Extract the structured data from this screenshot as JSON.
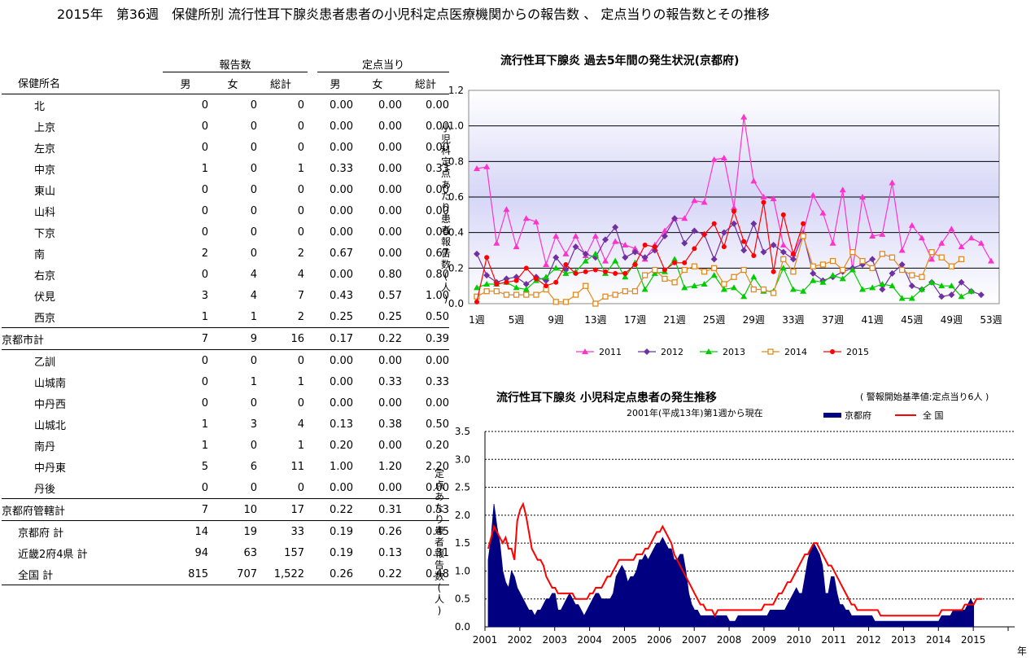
{
  "page_title": "2015年　第36週　保健所別 流行性耳下腺炎患者患者の小児科定点医療機関からの報告数 、 定点当りの報告数とその推移",
  "table": {
    "group_headers": {
      "reports": "報告数",
      "per_site": "定点当り"
    },
    "columns": {
      "name": "保健所名",
      "male": "男",
      "female": "女",
      "total": "総計",
      "male2": "男",
      "female2": "女",
      "total2": "総計"
    },
    "rows": [
      {
        "kind": "sub",
        "cells": [
          "北",
          "0",
          "0",
          "0",
          "0.00",
          "0.00",
          "0.00"
        ]
      },
      {
        "kind": "sub",
        "cells": [
          "上京",
          "0",
          "0",
          "0",
          "0.00",
          "0.00",
          "0.00"
        ]
      },
      {
        "kind": "sub",
        "cells": [
          "左京",
          "0",
          "0",
          "0",
          "0.00",
          "0.00",
          "0.00"
        ]
      },
      {
        "kind": "sub",
        "cells": [
          "中京",
          "1",
          "0",
          "1",
          "0.33",
          "0.00",
          "0.33"
        ]
      },
      {
        "kind": "sub",
        "cells": [
          "東山",
          "0",
          "0",
          "0",
          "0.00",
          "0.00",
          "0.00"
        ]
      },
      {
        "kind": "sub",
        "cells": [
          "山科",
          "0",
          "0",
          "0",
          "0.00",
          "0.00",
          "0.00"
        ]
      },
      {
        "kind": "sub",
        "cells": [
          "下京",
          "0",
          "0",
          "0",
          "0.00",
          "0.00",
          "0.00"
        ]
      },
      {
        "kind": "sub",
        "cells": [
          "南",
          "2",
          "0",
          "2",
          "0.67",
          "0.00",
          "0.67"
        ]
      },
      {
        "kind": "sub",
        "cells": [
          "右京",
          "0",
          "4",
          "4",
          "0.00",
          "0.80",
          "0.80"
        ]
      },
      {
        "kind": "sub",
        "cells": [
          "伏見",
          "3",
          "4",
          "7",
          "0.43",
          "0.57",
          "1.00"
        ]
      },
      {
        "kind": "sub",
        "cells": [
          "西京",
          "1",
          "1",
          "2",
          "0.25",
          "0.25",
          "0.50"
        ]
      },
      {
        "kind": "total",
        "cells": [
          "京都市計",
          "7",
          "9",
          "16",
          "0.17",
          "0.22",
          "0.39"
        ]
      },
      {
        "kind": "sub",
        "cells": [
          "乙訓",
          "0",
          "0",
          "0",
          "0.00",
          "0.00",
          "0.00"
        ]
      },
      {
        "kind": "sub",
        "cells": [
          "山城南",
          "0",
          "1",
          "1",
          "0.00",
          "0.33",
          "0.33"
        ]
      },
      {
        "kind": "sub",
        "cells": [
          "中丹西",
          "0",
          "0",
          "0",
          "0.00",
          "0.00",
          "0.00"
        ]
      },
      {
        "kind": "sub",
        "cells": [
          "山城北",
          "1",
          "3",
          "4",
          "0.13",
          "0.38",
          "0.50"
        ]
      },
      {
        "kind": "sub",
        "cells": [
          "南丹",
          "1",
          "0",
          "1",
          "0.20",
          "0.00",
          "0.20"
        ]
      },
      {
        "kind": "sub",
        "cells": [
          "中丹東",
          "5",
          "6",
          "11",
          "1.00",
          "1.20",
          "2.20"
        ]
      },
      {
        "kind": "sub",
        "cells": [
          "丹後",
          "0",
          "0",
          "0",
          "0.00",
          "0.00",
          "0.00"
        ]
      },
      {
        "kind": "total",
        "cells": [
          "京都府管轄計",
          "7",
          "10",
          "17",
          "0.22",
          "0.31",
          "0.53"
        ]
      },
      {
        "kind": "sum",
        "cells": [
          "京都府 計",
          "14",
          "19",
          "33",
          "0.19",
          "0.26",
          "0.45"
        ]
      },
      {
        "kind": "sum",
        "cells": [
          "近畿2府4県 計",
          "94",
          "63",
          "157",
          "0.19",
          "0.13",
          "0.31"
        ]
      },
      {
        "kind": "sum",
        "cells": [
          "全国 計",
          "815",
          "707",
          "1,522",
          "0.26",
          "0.22",
          "0.48"
        ]
      }
    ]
  },
  "chart_data": [
    {
      "type": "line",
      "title": "流行性耳下腺炎 過去5年間の発生状況(京都府)",
      "ylabel": "小児科定点あたり患者報告数(人)",
      "ylim": [
        0,
        1.2
      ],
      "yticks": [
        "0.0",
        "0.2",
        "0.4",
        "0.6",
        "0.8",
        "1.0",
        "1.2"
      ],
      "xticks": [
        "1週",
        "5週",
        "9週",
        "13週",
        "17週",
        "21週",
        "25週",
        "29週",
        "33週",
        "37週",
        "41週",
        "45週",
        "49週",
        "53週"
      ],
      "legend_position": "bottom",
      "series": [
        {
          "name": "2011",
          "color": "#ff33cc",
          "marker": "triangle",
          "values": [
            0.76,
            0.77,
            0.34,
            0.53,
            0.32,
            0.48,
            0.46,
            0.22,
            0.38,
            0.28,
            0.38,
            0.27,
            0.38,
            0.24,
            0.35,
            0.33,
            0.31,
            0.25,
            0.33,
            0.41,
            0.48,
            0.48,
            0.58,
            0.57,
            0.81,
            0.82,
            0.54,
            1.05,
            0.69,
            0.6,
            0.59,
            0.33,
            0.28,
            0.4,
            0.61,
            0.51,
            0.34,
            0.64,
            0.19,
            0.6,
            0.38,
            0.39,
            0.68,
            0.3,
            0.44,
            0.37,
            0.25,
            0.34,
            0.42,
            0.32,
            0.37,
            0.34,
            0.24
          ]
        },
        {
          "name": "2012",
          "color": "#7030a0",
          "marker": "diamond",
          "values": [
            0.28,
            0.16,
            0.12,
            0.14,
            0.15,
            0.11,
            0.15,
            0.13,
            0.26,
            0.19,
            0.32,
            0.28,
            0.26,
            0.36,
            0.43,
            0.26,
            0.29,
            0.26,
            0.3,
            0.38,
            0.48,
            0.34,
            0.41,
            0.39,
            0.25,
            0.4,
            0.45,
            0.3,
            0.45,
            0.29,
            0.33,
            0.29,
            0.25,
            0.39,
            0.17,
            0.13,
            0.15,
            0.18,
            0.2,
            0.22,
            0.25,
            0.08,
            0.17,
            0.22,
            0.1,
            0.08,
            0.12,
            0.04,
            0.05,
            0.12,
            0.07,
            0.05
          ]
        },
        {
          "name": "2013",
          "color": "#00cc00",
          "marker": "triangle",
          "values": [
            0.09,
            0.11,
            0.11,
            0.12,
            0.09,
            0.08,
            0.13,
            0.15,
            0.2,
            0.17,
            0.18,
            0.24,
            0.28,
            0.17,
            0.24,
            0.15,
            0.23,
            0.08,
            0.17,
            0.18,
            0.25,
            0.09,
            0.1,
            0.11,
            0.16,
            0.08,
            0.09,
            0.04,
            0.15,
            0.07,
            0.07,
            0.2,
            0.08,
            0.07,
            0.13,
            0.12,
            0.16,
            0.14,
            0.19,
            0.08,
            0.09,
            0.11,
            0.1,
            0.03,
            0.03,
            0.08,
            0.12,
            0.1,
            0.1,
            0.04,
            0.07
          ]
        },
        {
          "name": "2014",
          "color": "#e28a1e",
          "marker": "square",
          "values": [
            0.04,
            0.07,
            0.07,
            0.05,
            0.05,
            0.05,
            0.05,
            0.08,
            0.01,
            0.01,
            0.05,
            0.1,
            0.0,
            0.04,
            0.05,
            0.07,
            0.07,
            0.16,
            0.19,
            0.14,
            0.12,
            0.19,
            0.21,
            0.18,
            0.2,
            0.11,
            0.15,
            0.19,
            0.08,
            0.08,
            0.06,
            0.25,
            0.18,
            0.38,
            0.21,
            0.22,
            0.24,
            0.19,
            0.29,
            0.24,
            0.2,
            0.28,
            0.26,
            0.19,
            0.16,
            0.15,
            0.29,
            0.26,
            0.21,
            0.25
          ]
        },
        {
          "name": "2015",
          "color": "#ff0000",
          "marker": "circle",
          "values": [
            0.01,
            0.26,
            0.11,
            0.12,
            0.13,
            0.2,
            0.14,
            0.1,
            0.12,
            0.22,
            0.17,
            0.18,
            0.19,
            0.18,
            0.17,
            0.17,
            0.22,
            0.33,
            0.32,
            0.19,
            0.23,
            0.23,
            0.31,
            0.39,
            0.45,
            0.32,
            0.52,
            0.35,
            0.27,
            0.57,
            0.18,
            0.5,
            0.28,
            0.45
          ]
        }
      ]
    },
    {
      "type": "area",
      "title": "流行性耳下腺炎 小児科定点患者の発生推移",
      "subtitle": "2001年(平成13年)第1週から現在",
      "note": "( 警報開始基準値:定点当り6人 )",
      "ylabel": "定点あたり患者報告数(人)",
      "xlabel": "年",
      "ylim": [
        0,
        3.5
      ],
      "yticks": [
        "0.0",
        "0.5",
        "1.0",
        "1.5",
        "2.0",
        "2.5",
        "3.0",
        "3.5"
      ],
      "xticks": [
        "2001",
        "2002",
        "2003",
        "2004",
        "2005",
        "2006",
        "2007",
        "2008",
        "2009",
        "2010",
        "2011",
        "2012",
        "2013",
        "2014",
        "2015"
      ],
      "series": [
        {
          "name": "京都府",
          "color": "#000080",
          "style": "area"
        },
        {
          "name": "全 国",
          "color": "#ff0000",
          "style": "line"
        }
      ],
      "kyoto_monthly": [
        1.2,
        1.6,
        2.2,
        1.8,
        1.5,
        1.0,
        0.8,
        0.7,
        1.0,
        0.9,
        0.7,
        0.6,
        0.5,
        0.4,
        0.3,
        0.3,
        0.2,
        0.3,
        0.3,
        0.4,
        0.5,
        0.5,
        0.6,
        0.6,
        0.3,
        0.3,
        0.4,
        0.5,
        0.6,
        0.5,
        0.4,
        0.4,
        0.3,
        0.2,
        0.3,
        0.4,
        0.5,
        0.6,
        0.6,
        0.5,
        0.5,
        0.5,
        0.5,
        0.6,
        0.9,
        1.0,
        1.1,
        1.0,
        0.8,
        0.9,
        0.9,
        1.0,
        1.2,
        1.2,
        1.3,
        1.2,
        1.3,
        1.4,
        1.5,
        1.5,
        1.6,
        1.5,
        1.4,
        1.4,
        1.2,
        1.2,
        1.3,
        1.3,
        1.0,
        0.6,
        0.4,
        0.3,
        0.3,
        0.2,
        0.2,
        0.2,
        0.2,
        0.2,
        0.2,
        0.2,
        0.2,
        0.2,
        0.2,
        0.1,
        0.1,
        0.1,
        0.2,
        0.2,
        0.2,
        0.2,
        0.2,
        0.2,
        0.2,
        0.2,
        0.2,
        0.2,
        0.2,
        0.3,
        0.3,
        0.3,
        0.3,
        0.3,
        0.3,
        0.4,
        0.5,
        0.6,
        0.7,
        0.6,
        0.6,
        0.9,
        1.2,
        1.4,
        1.5,
        1.4,
        1.3,
        1.1,
        0.6,
        0.6,
        0.9,
        0.9,
        0.6,
        0.4,
        0.4,
        0.3,
        0.3,
        0.2,
        0.2,
        0.2,
        0.2,
        0.2,
        0.2,
        0.2,
        0.2,
        0.1,
        0.1,
        0.1,
        0.1,
        0.1,
        0.1,
        0.1,
        0.1,
        0.1,
        0.1,
        0.1,
        0.1,
        0.1,
        0.1,
        0.1,
        0.1,
        0.1,
        0.1,
        0.1,
        0.1,
        0.1,
        0.1,
        0.1,
        0.2,
        0.2,
        0.2,
        0.2,
        0.3,
        0.3,
        0.3,
        0.3,
        0.3,
        0.4,
        0.5,
        0.4
      ],
      "national_monthly": [
        1.4,
        1.6,
        1.8,
        1.7,
        1.6,
        1.5,
        1.6,
        1.4,
        1.4,
        1.2,
        1.9,
        2.1,
        2.2,
        2.0,
        1.7,
        1.4,
        1.3,
        1.2,
        1.2,
        1.1,
        0.9,
        0.8,
        0.7,
        0.7,
        0.6,
        0.6,
        0.6,
        0.6,
        0.6,
        0.6,
        0.5,
        0.5,
        0.5,
        0.5,
        0.5,
        0.6,
        0.6,
        0.7,
        0.7,
        0.7,
        0.8,
        0.9,
        0.9,
        1.0,
        1.1,
        1.2,
        1.2,
        1.2,
        1.2,
        1.2,
        1.2,
        1.3,
        1.3,
        1.3,
        1.4,
        1.4,
        1.5,
        1.6,
        1.7,
        1.7,
        1.8,
        1.7,
        1.6,
        1.5,
        1.3,
        1.2,
        1.1,
        1.0,
        0.9,
        0.8,
        0.7,
        0.6,
        0.5,
        0.4,
        0.4,
        0.3,
        0.3,
        0.3,
        0.2,
        0.3,
        0.3,
        0.3,
        0.3,
        0.3,
        0.3,
        0.3,
        0.3,
        0.3,
        0.3,
        0.3,
        0.3,
        0.3,
        0.3,
        0.3,
        0.3,
        0.4,
        0.4,
        0.4,
        0.4,
        0.5,
        0.6,
        0.6,
        0.7,
        0.8,
        0.8,
        0.9,
        1.0,
        1.1,
        1.2,
        1.3,
        1.3,
        1.4,
        1.5,
        1.5,
        1.4,
        1.3,
        1.2,
        1.1,
        1.1,
        1.0,
        0.9,
        0.8,
        0.7,
        0.6,
        0.5,
        0.4,
        0.4,
        0.3,
        0.3,
        0.3,
        0.3,
        0.3,
        0.3,
        0.3,
        0.3,
        0.2,
        0.2,
        0.2,
        0.2,
        0.2,
        0.2,
        0.2,
        0.2,
        0.2,
        0.2,
        0.2,
        0.2,
        0.2,
        0.2,
        0.2,
        0.2,
        0.2,
        0.2,
        0.2,
        0.2,
        0.2,
        0.3,
        0.3,
        0.3,
        0.3,
        0.3,
        0.3,
        0.3,
        0.3,
        0.4,
        0.4,
        0.4,
        0.4,
        0.5,
        0.5,
        0.5
      ]
    }
  ]
}
